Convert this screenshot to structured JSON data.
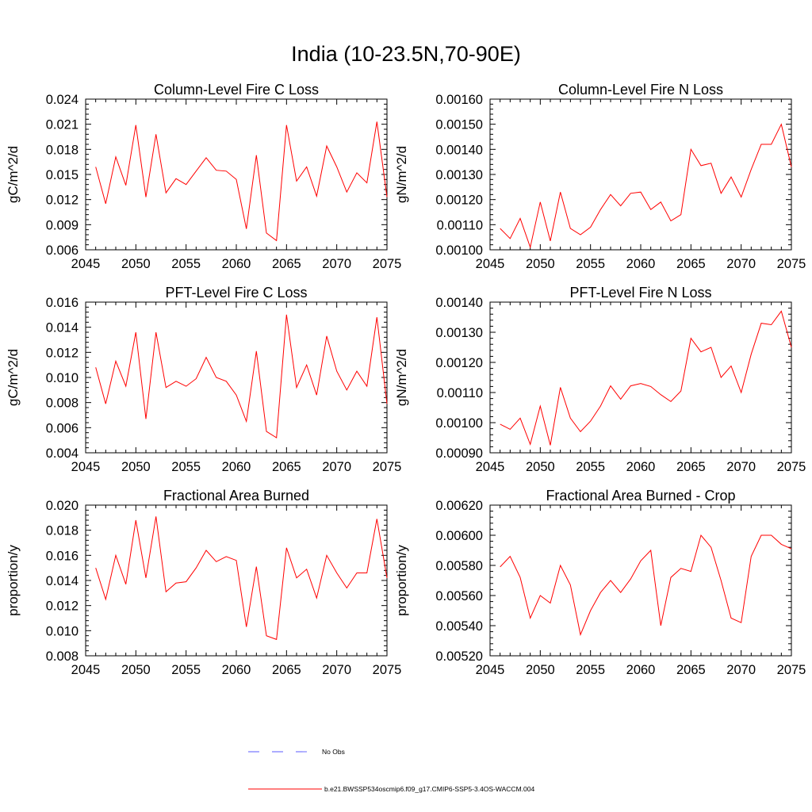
{
  "figure": {
    "title": "India (10-23.5N,70-90E)"
  },
  "legend": {
    "entries": [
      {
        "label": "No Obs",
        "style": "dashed",
        "color": "#5a5aff"
      },
      {
        "label": "b.e21.BWSSP534oscmip6.f09_g17.CMIP6-SSP5-3.4OS-WACCM.004",
        "style": "solid",
        "color": "#ff0000"
      }
    ]
  },
  "chart_data": [
    {
      "type": "line",
      "title": "Column-Level Fire C Loss",
      "xlabel": "",
      "ylabel": "gC/m^2/d",
      "xlim": [
        2045,
        2075
      ],
      "ylim": [
        0.006,
        0.024
      ],
      "xticks": [
        "2045",
        "2050",
        "2055",
        "2060",
        "2065",
        "2070",
        "2075"
      ],
      "yticks": [
        "0.006",
        "0.009",
        "0.012",
        "0.015",
        "0.018",
        "0.021",
        "0.024"
      ],
      "grid": false,
      "x": [
        2046,
        2047,
        2048,
        2049,
        2050,
        2051,
        2052,
        2053,
        2054,
        2055,
        2056,
        2057,
        2058,
        2059,
        2060,
        2061,
        2062,
        2063,
        2064,
        2065,
        2066,
        2067,
        2068,
        2069,
        2070,
        2071,
        2072,
        2073,
        2074,
        2075
      ],
      "series": [
        {
          "color": "#ff0000",
          "values": [
            0.0159,
            0.0115,
            0.0171,
            0.0137,
            0.0209,
            0.0123,
            0.0198,
            0.0128,
            0.0145,
            0.0138,
            0.0154,
            0.017,
            0.0155,
            0.0154,
            0.0144,
            0.0085,
            0.0173,
            0.008,
            0.0071,
            0.0209,
            0.0142,
            0.0159,
            0.0124,
            0.0184,
            0.0159,
            0.0129,
            0.0152,
            0.014,
            0.0213,
            0.0123
          ]
        }
      ]
    },
    {
      "type": "line",
      "title": "Column-Level Fire N Loss",
      "xlabel": "",
      "ylabel": "gN/m^2/d",
      "xlim": [
        2045,
        2075
      ],
      "ylim": [
        0.001,
        0.0016
      ],
      "xticks": [
        "2045",
        "2050",
        "2055",
        "2060",
        "2065",
        "2070",
        "2075"
      ],
      "yticks": [
        "0.00100",
        "0.00110",
        "0.00120",
        "0.00130",
        "0.00140",
        "0.00150",
        "0.00160"
      ],
      "grid": false,
      "x": [
        2046,
        2047,
        2048,
        2049,
        2050,
        2051,
        2052,
        2053,
        2054,
        2055,
        2056,
        2057,
        2058,
        2059,
        2060,
        2061,
        2062,
        2063,
        2064,
        2065,
        2066,
        2067,
        2068,
        2069,
        2070,
        2071,
        2072,
        2073,
        2074,
        2075
      ],
      "series": [
        {
          "color": "#ff0000",
          "values": [
            0.001085,
            0.001045,
            0.001125,
            0.00101,
            0.00119,
            0.001035,
            0.00123,
            0.001085,
            0.00106,
            0.00109,
            0.00116,
            0.00122,
            0.001175,
            0.001225,
            0.00123,
            0.00116,
            0.00119,
            0.001115,
            0.00114,
            0.0014,
            0.001335,
            0.001345,
            0.001225,
            0.00129,
            0.00121,
            0.00132,
            0.00142,
            0.00142,
            0.0015,
            0.00133
          ]
        }
      ]
    },
    {
      "type": "line",
      "title": "PFT-Level Fire C Loss",
      "xlabel": "",
      "ylabel": "gC/m^2/d",
      "xlim": [
        2045,
        2075
      ],
      "ylim": [
        0.004,
        0.016
      ],
      "xticks": [
        "2045",
        "2050",
        "2055",
        "2060",
        "2065",
        "2070",
        "2075"
      ],
      "yticks": [
        "0.004",
        "0.006",
        "0.008",
        "0.010",
        "0.012",
        "0.014",
        "0.016"
      ],
      "grid": false,
      "x": [
        2046,
        2047,
        2048,
        2049,
        2050,
        2051,
        2052,
        2053,
        2054,
        2055,
        2056,
        2057,
        2058,
        2059,
        2060,
        2061,
        2062,
        2063,
        2064,
        2065,
        2066,
        2067,
        2068,
        2069,
        2070,
        2071,
        2072,
        2073,
        2074,
        2075
      ],
      "series": [
        {
          "color": "#ff0000",
          "values": [
            0.0108,
            0.0079,
            0.0113,
            0.0093,
            0.0136,
            0.0067,
            0.0136,
            0.0092,
            0.0097,
            0.0093,
            0.0099,
            0.0116,
            0.01,
            0.0097,
            0.0086,
            0.0065,
            0.0121,
            0.0057,
            0.0052,
            0.015,
            0.0092,
            0.011,
            0.0086,
            0.0133,
            0.0105,
            0.009,
            0.0105,
            0.0093,
            0.0148,
            0.0079
          ]
        }
      ]
    },
    {
      "type": "line",
      "title": "PFT-Level Fire N Loss",
      "xlabel": "",
      "ylabel": "gN/m^2/d",
      "xlim": [
        2045,
        2075
      ],
      "ylim": [
        0.0009,
        0.0014
      ],
      "xticks": [
        "2045",
        "2050",
        "2055",
        "2060",
        "2065",
        "2070",
        "2075"
      ],
      "yticks": [
        "0.00090",
        "0.00100",
        "0.00110",
        "0.00120",
        "0.00130",
        "0.00140"
      ],
      "grid": false,
      "x": [
        2046,
        2047,
        2048,
        2049,
        2050,
        2051,
        2052,
        2053,
        2054,
        2055,
        2056,
        2057,
        2058,
        2059,
        2060,
        2061,
        2062,
        2063,
        2064,
        2065,
        2066,
        2067,
        2068,
        2069,
        2070,
        2071,
        2072,
        2073,
        2074,
        2075
      ],
      "series": [
        {
          "color": "#ff0000",
          "values": [
            0.000995,
            0.000978,
            0.001015,
            0.000928,
            0.001055,
            0.000925,
            0.001117,
            0.001015,
            0.00097,
            0.001005,
            0.001055,
            0.001122,
            0.001078,
            0.001122,
            0.00113,
            0.00112,
            0.001093,
            0.00107,
            0.001105,
            0.00128,
            0.001235,
            0.00125,
            0.00115,
            0.001188,
            0.0011,
            0.001227,
            0.00133,
            0.001325,
            0.00137,
            0.00125
          ]
        }
      ]
    },
    {
      "type": "line",
      "title": "Fractional Area Burned",
      "xlabel": "",
      "ylabel": "proportion/y",
      "xlim": [
        2045,
        2075
      ],
      "ylim": [
        0.008,
        0.02
      ],
      "xticks": [
        "2045",
        "2050",
        "2055",
        "2060",
        "2065",
        "2070",
        "2075"
      ],
      "yticks": [
        "0.008",
        "0.010",
        "0.012",
        "0.014",
        "0.016",
        "0.018",
        "0.020"
      ],
      "grid": false,
      "x": [
        2046,
        2047,
        2048,
        2049,
        2050,
        2051,
        2052,
        2053,
        2054,
        2055,
        2056,
        2057,
        2058,
        2059,
        2060,
        2061,
        2062,
        2063,
        2064,
        2065,
        2066,
        2067,
        2068,
        2069,
        2070,
        2071,
        2072,
        2073,
        2074,
        2075
      ],
      "series": [
        {
          "color": "#ff0000",
          "values": [
            0.015,
            0.0125,
            0.016,
            0.0137,
            0.0188,
            0.0142,
            0.0191,
            0.0131,
            0.0138,
            0.0139,
            0.015,
            0.0164,
            0.0155,
            0.0159,
            0.0156,
            0.0103,
            0.0151,
            0.0096,
            0.0093,
            0.0166,
            0.0142,
            0.0149,
            0.0126,
            0.016,
            0.0146,
            0.0134,
            0.0146,
            0.0146,
            0.0189,
            0.0142
          ]
        }
      ]
    },
    {
      "type": "line",
      "title": "Fractional Area Burned - Crop",
      "xlabel": "",
      "ylabel": "proportion/y",
      "xlim": [
        2045,
        2075
      ],
      "ylim": [
        0.0052,
        0.0062
      ],
      "xticks": [
        "2045",
        "2050",
        "2055",
        "2060",
        "2065",
        "2070",
        "2075"
      ],
      "yticks": [
        "0.00520",
        "0.00540",
        "0.00560",
        "0.00580",
        "0.00600",
        "0.00620"
      ],
      "grid": false,
      "x": [
        2046,
        2047,
        2048,
        2049,
        2050,
        2051,
        2052,
        2053,
        2054,
        2055,
        2056,
        2057,
        2058,
        2059,
        2060,
        2061,
        2062,
        2063,
        2064,
        2065,
        2066,
        2067,
        2068,
        2069,
        2070,
        2071,
        2072,
        2073,
        2074,
        2075
      ],
      "series": [
        {
          "color": "#ff0000",
          "values": [
            0.00579,
            0.00586,
            0.00572,
            0.00545,
            0.0056,
            0.00555,
            0.0058,
            0.00567,
            0.00534,
            0.0055,
            0.00562,
            0.0057,
            0.00562,
            0.00571,
            0.00583,
            0.0059,
            0.0054,
            0.00572,
            0.00578,
            0.00576,
            0.006,
            0.00592,
            0.0057,
            0.00545,
            0.00542,
            0.00586,
            0.006,
            0.006,
            0.00594,
            0.00591
          ]
        }
      ]
    }
  ]
}
